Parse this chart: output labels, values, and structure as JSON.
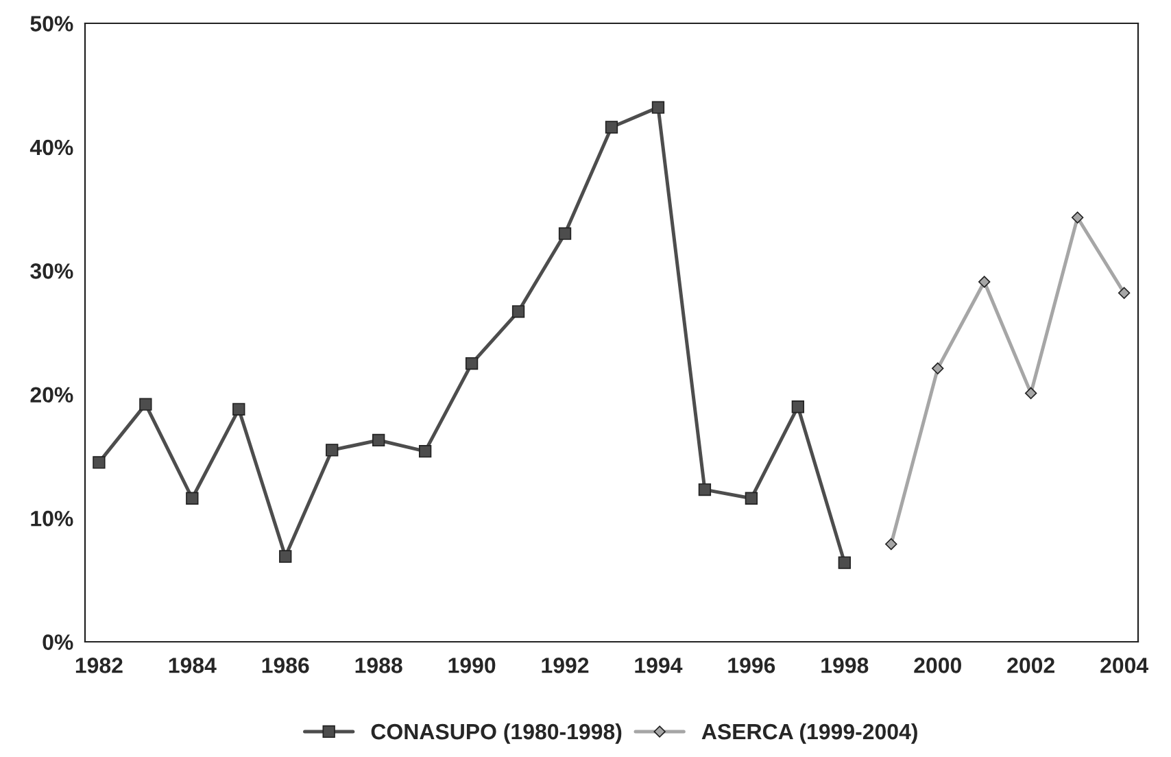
{
  "chart_data": {
    "type": "line",
    "categories": [
      "1982",
      null,
      "1984",
      null,
      "1986",
      null,
      "1988",
      null,
      "1990",
      null,
      "1992",
      null,
      "1994",
      null,
      "1996",
      null,
      "1998",
      null,
      "2000",
      null,
      "2002",
      null,
      "2004"
    ],
    "series": [
      {
        "name": "CONASUPO (1980-1998)",
        "color": "#4d4d4d",
        "marker": "square",
        "values": [
          14.5,
          19.2,
          11.6,
          18.8,
          6.9,
          15.5,
          16.3,
          15.4,
          22.5,
          26.7,
          33.0,
          41.6,
          43.2,
          12.3,
          11.6,
          19.0,
          6.4,
          null,
          null,
          null,
          null,
          null,
          null
        ]
      },
      {
        "name": "ASERCA (1999-2004)",
        "color": "#a6a6a6",
        "marker": "diamond",
        "values": [
          null,
          null,
          null,
          null,
          null,
          null,
          null,
          null,
          null,
          null,
          null,
          null,
          null,
          null,
          null,
          null,
          null,
          7.9,
          22.1,
          29.1,
          20.1,
          34.3,
          28.2
        ]
      }
    ],
    "ylim": [
      0,
      50
    ],
    "yticks": [
      {
        "value": 0,
        "label": "0%"
      },
      {
        "value": 10,
        "label": "10%"
      },
      {
        "value": 20,
        "label": "20%"
      },
      {
        "value": 30,
        "label": "30%"
      },
      {
        "value": 40,
        "label": "40%"
      },
      {
        "value": 50,
        "label": "50%"
      }
    ],
    "grid": false,
    "legend": "bottom",
    "line_style": "solid"
  }
}
